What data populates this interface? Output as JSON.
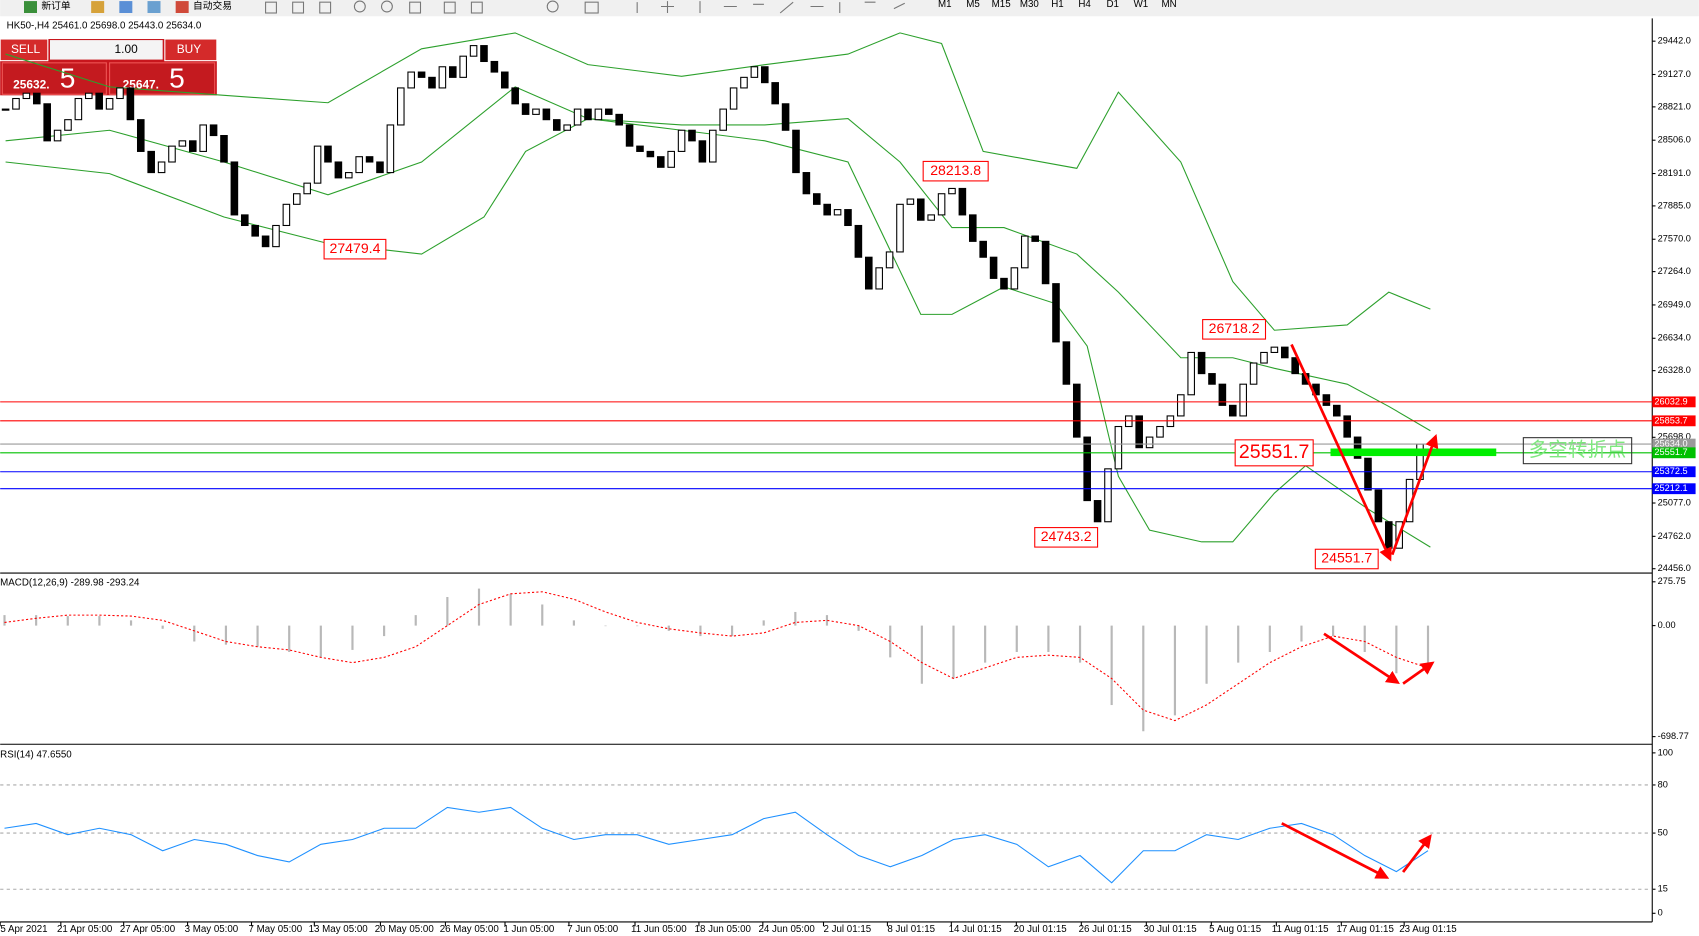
{
  "toolbar": {
    "new_order": "新订单",
    "auto_trading": "自动交易",
    "timeframes": [
      "M1",
      "M5",
      "M15",
      "M30",
      "H1",
      "H4",
      "D1",
      "W1",
      "MN"
    ]
  },
  "trade_panel": {
    "sell": "SELL",
    "buy": "BUY",
    "volume": "1.00",
    "bid": "25632.",
    "bid_pip": "5",
    "ask": "25647.",
    "ask_pip": "5"
  },
  "chart_data": [
    {
      "type": "candlestick",
      "title": "HK50-,H4  25461.0 25698.0 25443.0 25634.0",
      "close": [
        28800,
        28900,
        28950,
        28850,
        28500,
        28600,
        28700,
        28900,
        28950,
        28800,
        28900,
        29000,
        28700,
        28400,
        28200,
        28300,
        28450,
        28500,
        28400,
        28650,
        28550,
        28300,
        27800,
        27700,
        27600,
        27500,
        27700,
        27900,
        28000,
        28100,
        28450,
        28300,
        28150,
        28200,
        28350,
        28300,
        28200,
        28650,
        29000,
        29150,
        29100,
        29000,
        29200,
        29100,
        29300,
        29400,
        29250,
        29150,
        29000,
        28850,
        28750,
        28800,
        28700,
        28600,
        28650,
        28800,
        28700,
        28800,
        28750,
        28650,
        28450,
        28400,
        28350,
        28250,
        28400,
        28600,
        28500,
        28300,
        28600,
        28800,
        29000,
        29100,
        29200,
        29050,
        28850,
        28600,
        28200,
        28000,
        27900,
        27800,
        27850,
        27700,
        27400,
        27100,
        27300,
        27450,
        27900,
        27950,
        27750,
        27800,
        28000,
        28050,
        27800,
        27550,
        27400,
        27200,
        27100,
        27300,
        27600,
        27550,
        27150,
        26600,
        26200,
        25700,
        25100,
        24900,
        25400,
        25800,
        25900,
        25600,
        25700,
        25800,
        25900,
        26100,
        26500,
        26300,
        26200,
        26000,
        25900,
        26200,
        26400,
        26500,
        26550,
        26450,
        26300,
        26200,
        26100,
        26000,
        25900,
        25700,
        25500,
        25200,
        24900,
        24650,
        24900,
        25300,
        25634
      ],
      "bands": {
        "upper": {
          "color": "#2ca02c",
          "x": [
            0,
            10,
            21,
            31,
            40,
            49,
            56,
            65,
            73,
            81,
            86,
            90,
            94,
            103,
            107,
            113,
            118,
            122,
            129,
            133,
            137
          ],
          "values": [
            29320,
            29010,
            28930,
            28860,
            29370,
            29520,
            29220,
            29110,
            29220,
            29320,
            29520,
            29420,
            28400,
            28240,
            28960,
            28300,
            27170,
            26710,
            26760,
            27070,
            26910
          ]
        },
        "middle": {
          "color": "#2ca02c",
          "x": [
            0,
            10,
            21,
            31,
            40,
            49,
            56,
            65,
            73,
            81,
            86,
            91,
            96,
            103,
            107,
            113,
            118,
            122,
            129,
            133,
            137
          ],
          "values": [
            28500,
            28600,
            28300,
            27990,
            28300,
            29010,
            28710,
            28650,
            28650,
            28710,
            28300,
            27680,
            27680,
            27430,
            27070,
            26450,
            26450,
            26350,
            26200,
            25990,
            25760
          ]
        },
        "lower": {
          "color": "#2ca02c",
          "x": [
            0,
            10,
            21,
            31,
            40,
            46,
            50,
            56,
            65,
            73,
            81,
            88,
            91,
            96,
            101,
            104,
            107,
            110,
            115,
            118,
            122,
            125,
            131,
            137
          ],
          "values": [
            28300,
            28190,
            27780,
            27530,
            27430,
            27780,
            28400,
            28710,
            28600,
            28500,
            28300,
            26860,
            26860,
            27120,
            26960,
            26560,
            25330,
            24820,
            24710,
            24710,
            25170,
            25430,
            25020,
            24660
          ]
        }
      },
      "levels": [
        {
          "value": 26032.9,
          "color": "#ff0000"
        },
        {
          "value": 25853.7,
          "color": "#ff0000"
        },
        {
          "value": 25634.0,
          "label": "25634.0",
          "color": "#9a9a9a"
        },
        {
          "value": 25551.7,
          "color": "#00c000"
        },
        {
          "value": 25372.5,
          "color": "#0000ff"
        },
        {
          "value": 25212.1,
          "color": "#0000ff"
        }
      ],
      "annotations": [
        28213.8,
        27479.4,
        26718.2,
        24743.2,
        24551.7,
        25551.7
      ],
      "note": "多空转折点",
      "ylim": [
        24425,
        29657
      ],
      "yticks": [
        {
          "value": 29442,
          "label": "29442.0"
        },
        {
          "value": 29127,
          "label": "29127.0"
        },
        {
          "value": 28821,
          "label": "28821.0"
        },
        {
          "value": 28506,
          "label": "28506.0"
        },
        {
          "value": 28191,
          "label": "28191.0"
        },
        {
          "value": 27885,
          "label": "27885.0"
        },
        {
          "value": 27570,
          "label": "27570.0"
        },
        {
          "value": 27264,
          "label": "27264.0"
        },
        {
          "value": 26949,
          "label": "26949.0"
        },
        {
          "value": 26634,
          "label": "26634.0"
        },
        {
          "value": 26328,
          "label": "26328.0"
        },
        {
          "value": 25698,
          "label": "25698.0"
        },
        {
          "value": 25077,
          "label": "25077.0"
        },
        {
          "value": 24762,
          "label": "24762.0"
        },
        {
          "value": 24456,
          "label": "24456.0"
        }
      ],
      "dates": [
        "5 Apr 2021",
        "21 Apr 05:00",
        "27 Apr 05:00",
        "3 May 05:00",
        "7 May 05:00",
        "13 May 05:00",
        "20 May 05:00",
        "26 May 05:00",
        "1 Jun 05:00",
        "7 Jun 05:00",
        "11 Jun 05:00",
        "18 Jun 05:00",
        "24 Jun 05:00",
        "2 Jul 01:15",
        "8 Jul 01:15",
        "14 Jul 01:15",
        "20 Jul 01:15",
        "26 Jul 01:15",
        "30 Jul 01:15",
        "5 Aug 01:15",
        "11 Aug 01:15",
        "17 Aug 01:15",
        "23 Aug 01:15"
      ]
    },
    {
      "type": "macd",
      "title": "MACD(12,26,9) -289.98 -293.24",
      "histogram": [
        66,
        66,
        60,
        60,
        33,
        -20,
        -100,
        -120,
        -133,
        -166,
        -200,
        -153,
        -66,
        66,
        180,
        233,
        200,
        133,
        33,
        0,
        0,
        -33,
        -66,
        -66,
        33,
        86,
        66,
        -33,
        -200,
        -366,
        -333,
        -233,
        -166,
        -166,
        -233,
        -500,
        -665,
        -565,
        -366,
        -233,
        -166,
        -100,
        -66,
        -166,
        -300,
        -300
      ],
      "signal": [
        20,
        46,
        66,
        66,
        60,
        33,
        -33,
        -100,
        -133,
        -153,
        -200,
        -233,
        -200,
        -133,
        0,
        133,
        200,
        213,
        166,
        86,
        20,
        -20,
        -46,
        -66,
        -46,
        20,
        33,
        0,
        -100,
        -233,
        -333,
        -266,
        -200,
        -186,
        -200,
        -333,
        -532,
        -598,
        -499,
        -366,
        -233,
        -133,
        -66,
        -100,
        -200,
        -266
      ],
      "ylim": [
        -740,
        317
      ],
      "yticks": [
        275.75,
        {
          "value": 0,
          "label": "0.00"
        },
        -698.77
      ]
    },
    {
      "type": "rsi",
      "title": "RSI(14) 47.6550",
      "values": [
        53,
        56,
        49,
        53,
        49,
        39,
        46,
        43,
        36,
        32,
        43,
        46,
        53,
        53,
        66,
        63,
        66,
        53,
        46,
        49,
        49,
        43,
        46,
        49,
        59,
        63,
        49,
        36,
        29,
        36,
        46,
        49,
        43,
        29,
        36,
        19,
        39,
        39,
        49,
        46,
        53,
        56,
        49,
        36,
        26,
        39
      ],
      "ylim": [
        -4.7,
        104.7
      ],
      "yticks": [
        100,
        80,
        50,
        15,
        0
      ]
    }
  ]
}
